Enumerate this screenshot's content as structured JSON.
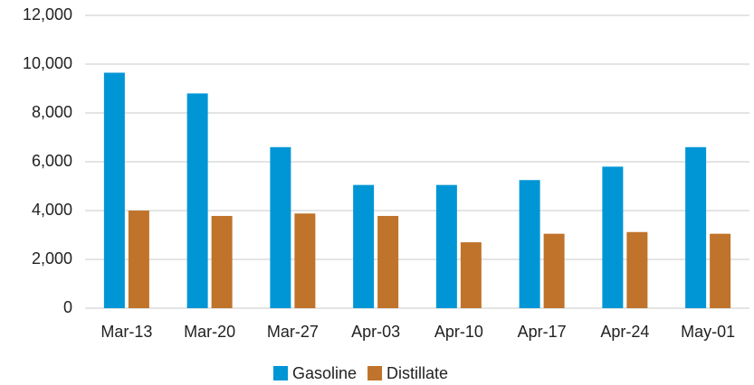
{
  "chart_data": {
    "type": "bar",
    "categories": [
      "Mar-13",
      "Mar-20",
      "Mar-27",
      "Apr-03",
      "Apr-10",
      "Apr-17",
      "Apr-24",
      "May-01"
    ],
    "series": [
      {
        "name": "Gasoline",
        "color": "#0096d6",
        "values": [
          9650,
          8800,
          6600,
          5050,
          5050,
          5250,
          5800,
          6600
        ]
      },
      {
        "name": "Distillate",
        "color": "#c0732a",
        "values": [
          4000,
          3780,
          3880,
          3780,
          2700,
          3050,
          3120,
          3050
        ]
      }
    ],
    "ylim": [
      0,
      12000
    ],
    "yticks": [
      0,
      {
        "value": 2000,
        "label": "2,000"
      },
      {
        "value": 4000,
        "label": "4,000"
      },
      {
        "value": 6000,
        "label": "6,000"
      },
      {
        "value": 8000,
        "label": "8,000"
      },
      {
        "value": 10000,
        "label": "10,000"
      },
      {
        "value": 12000,
        "label": "12,000"
      }
    ],
    "grid": true,
    "legend": "bottom"
  }
}
